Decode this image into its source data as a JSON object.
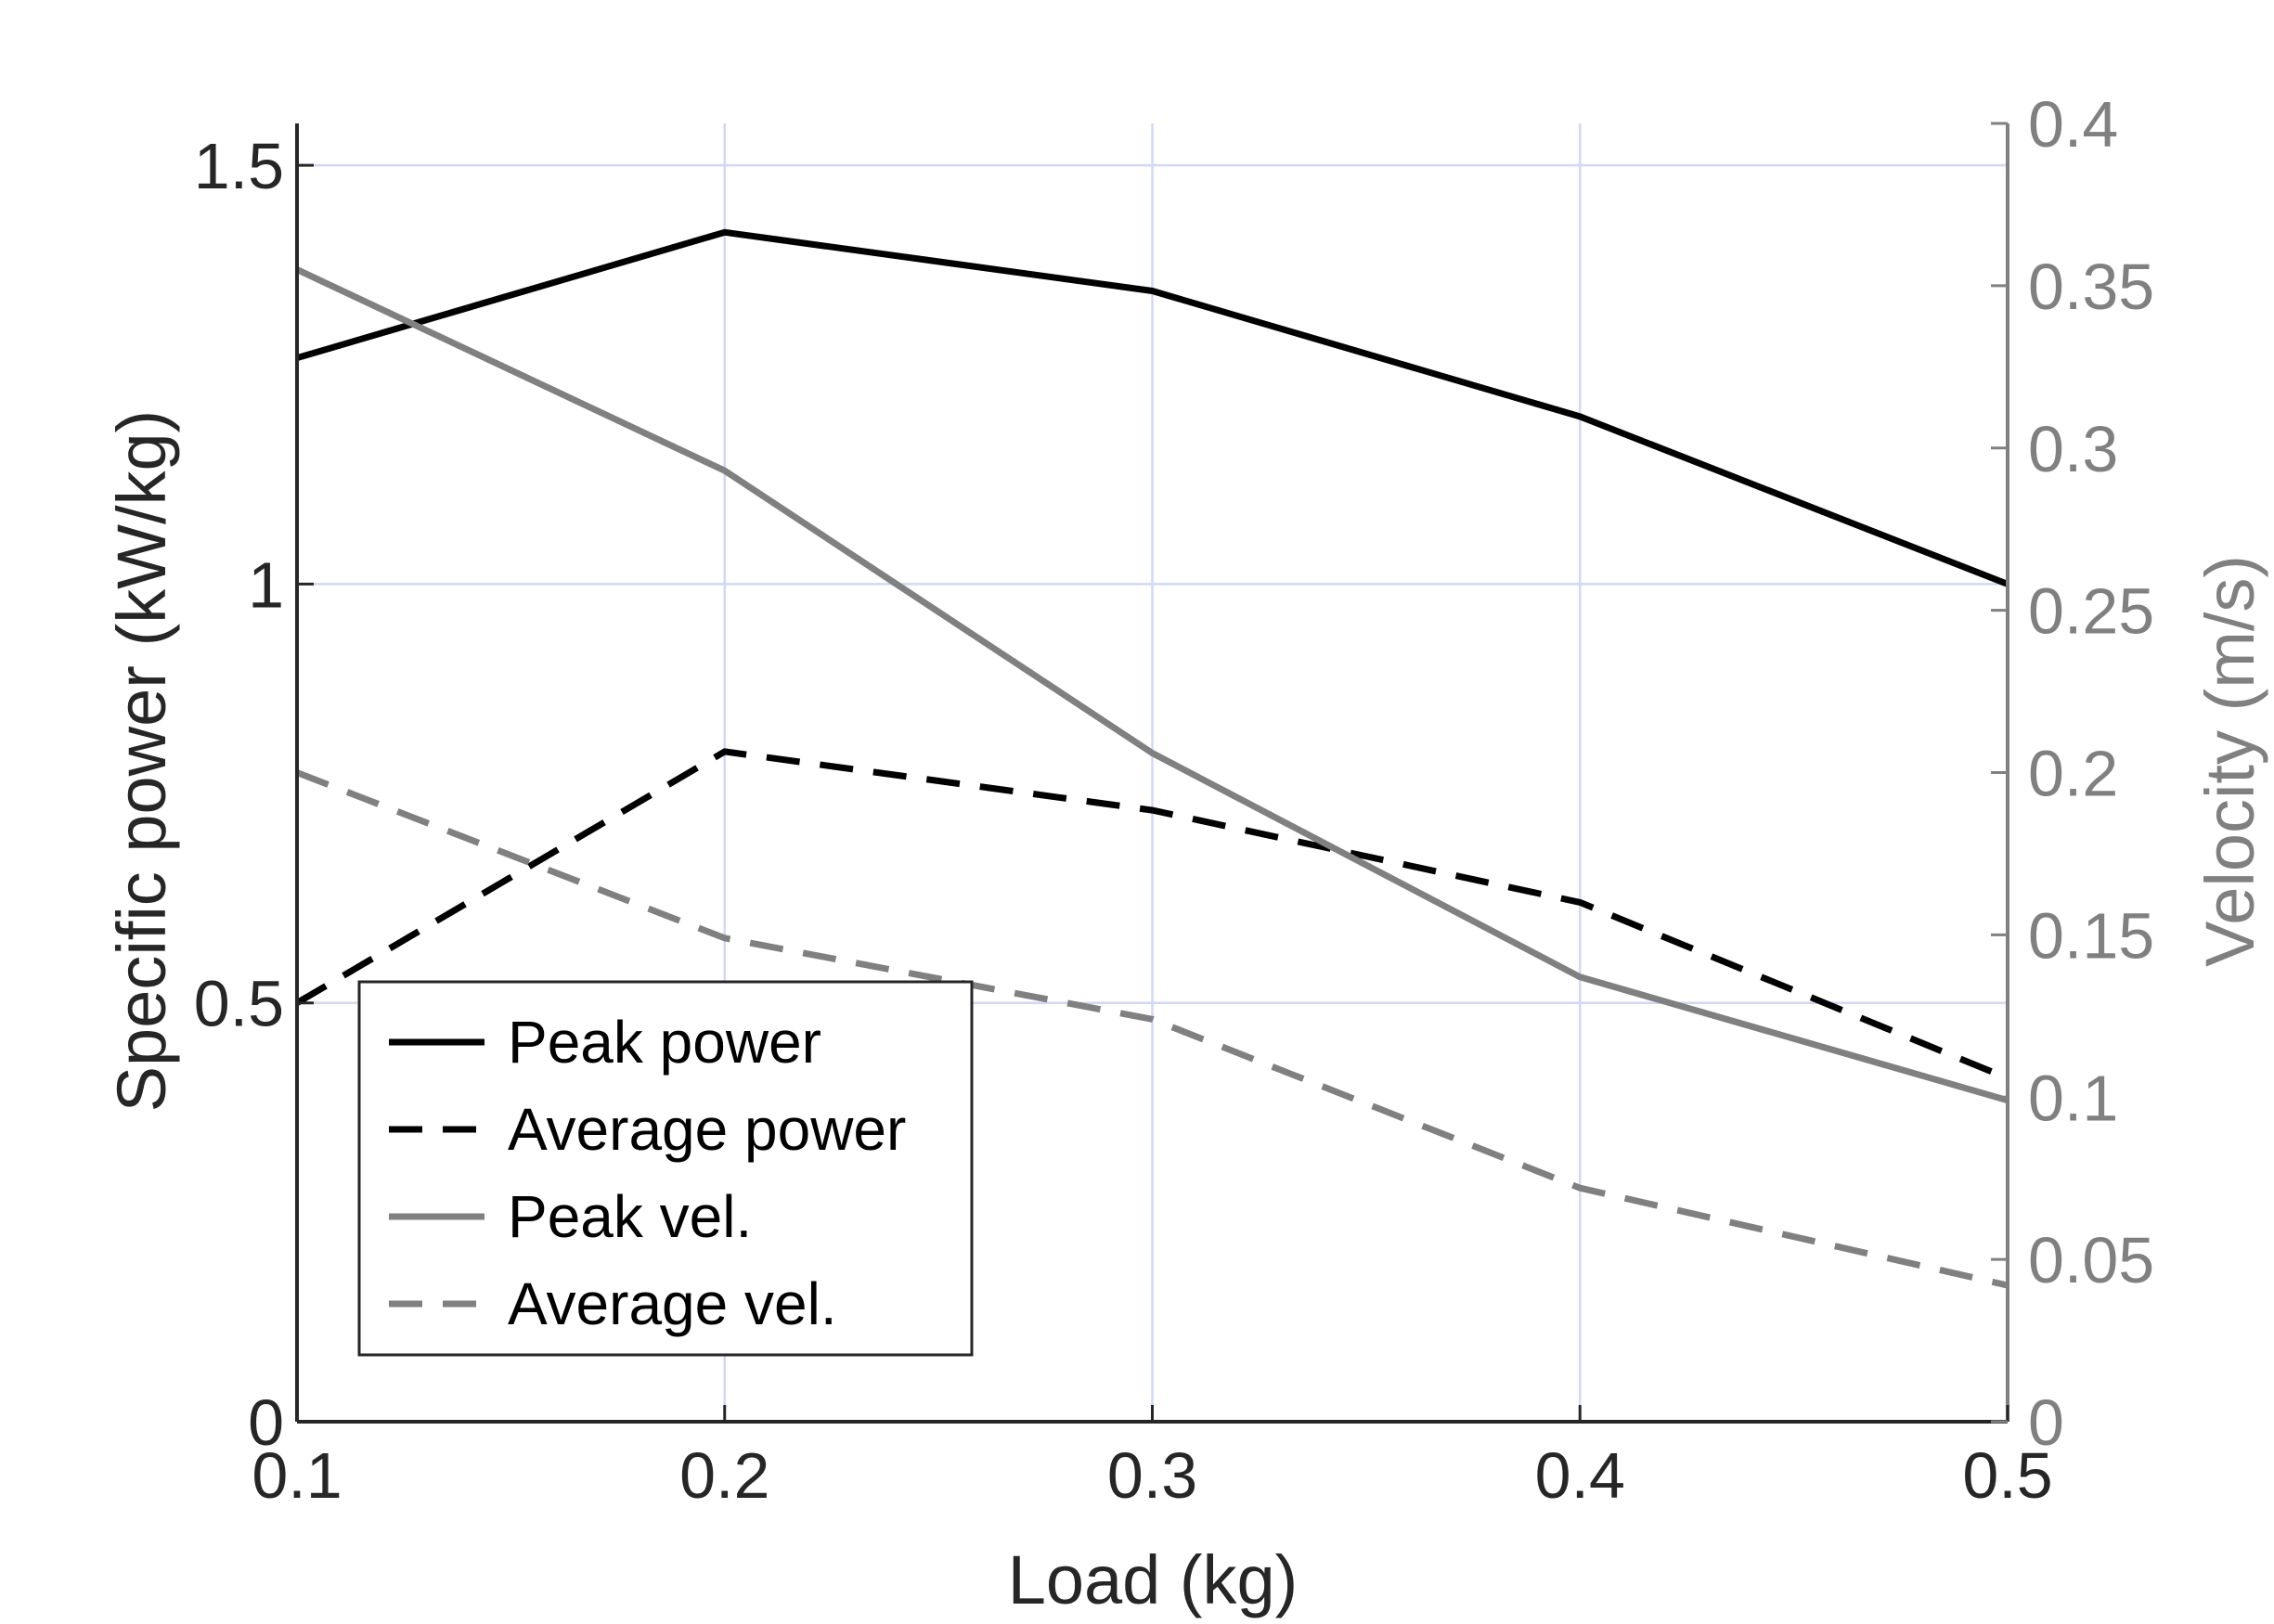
{
  "chart_data": {
    "type": "line",
    "title": "",
    "xlabel": "Load  (kg)",
    "ylabel_left": "Specific power (kW/kg)",
    "ylabel_right": "Velocity (m/s)",
    "x": [
      0.1,
      0.2,
      0.3,
      0.4,
      0.5
    ],
    "xlim": [
      0.1,
      0.5
    ],
    "ylim_left": [
      0,
      1.55
    ],
    "ylim_right": [
      0,
      0.4
    ],
    "xticks": [
      "0.1",
      "0.2",
      "0.3",
      "0.4",
      "0.5"
    ],
    "yticks_left": [
      "0",
      "0.5",
      "1",
      "1.5"
    ],
    "yticks_right": [
      "0",
      "0.05",
      "0.1",
      "0.15",
      "0.2",
      "0.25",
      "0.3",
      "0.35",
      "0.4"
    ],
    "grid": true,
    "legend_position": "bottom-left",
    "colors": {
      "power": "#000000",
      "velocity": "#808080",
      "grid": "#d0d8f5",
      "right_axis": "#808080"
    },
    "series": [
      {
        "name": "Peak power",
        "axis": "left",
        "dash": false,
        "color": "power",
        "values": [
          1.27,
          1.42,
          1.35,
          1.2,
          1.0
        ]
      },
      {
        "name": "Average power",
        "axis": "left",
        "dash": true,
        "color": "power",
        "values": [
          0.5,
          0.8,
          0.73,
          0.62,
          0.41
        ]
      },
      {
        "name": "Peak vel.",
        "axis": "right",
        "dash": false,
        "color": "velocity",
        "values": [
          0.355,
          0.293,
          0.206,
          0.137,
          0.099
        ]
      },
      {
        "name": "Average vel.",
        "axis": "right",
        "dash": true,
        "color": "velocity",
        "values": [
          0.2,
          0.149,
          0.124,
          0.072,
          0.042
        ]
      }
    ]
  }
}
